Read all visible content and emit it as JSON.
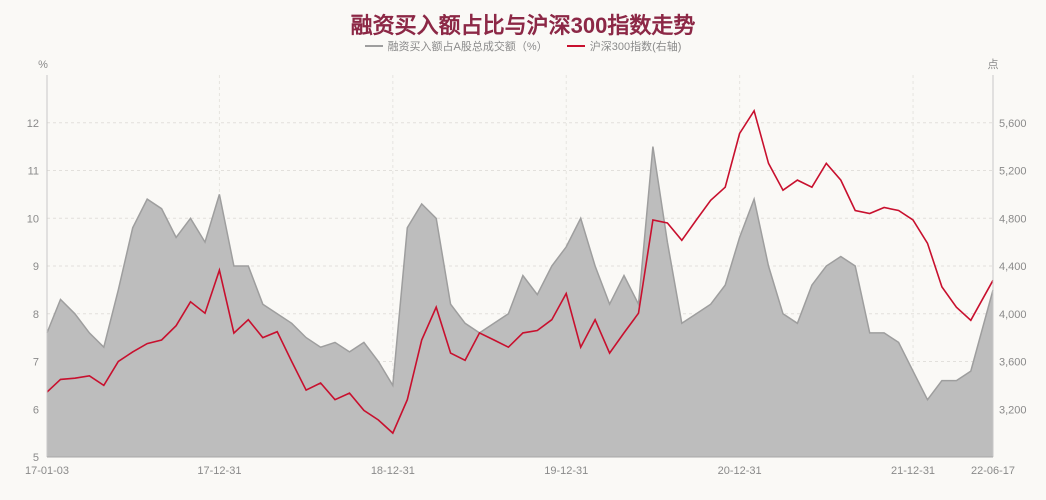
{
  "chart_data": {
    "type": "area+line",
    "title": "融资买入额占比与沪深300指数走势",
    "legend_position": "top",
    "grid": true,
    "left_axis": {
      "unit": "%",
      "range": [
        5,
        13
      ],
      "ticks": [
        "5",
        "6",
        "7",
        "8",
        "9",
        "10",
        "11",
        "12"
      ]
    },
    "right_axis": {
      "unit": "点",
      "range": [
        2800,
        6000
      ],
      "ticks": [
        "3,200",
        "3,600",
        "4,000",
        "4,400",
        "4,800",
        "5,200",
        "5,600"
      ]
    },
    "x_ticks": [
      "17-01-03",
      "17-12-31",
      "18-12-31",
      "19-12-31",
      "20-12-31",
      "21-12-31",
      "22-06-17"
    ],
    "x": [
      "2017-01",
      "2017-02",
      "2017-03",
      "2017-04",
      "2017-05",
      "2017-06",
      "2017-07",
      "2017-08",
      "2017-09",
      "2017-10",
      "2017-11",
      "2017-12",
      "2018-01",
      "2018-02",
      "2018-03",
      "2018-04",
      "2018-05",
      "2018-06",
      "2018-07",
      "2018-08",
      "2018-09",
      "2018-10",
      "2018-11",
      "2018-12",
      "2019-01",
      "2019-02",
      "2019-03",
      "2019-04",
      "2019-05",
      "2019-06",
      "2019-07",
      "2019-08",
      "2019-09",
      "2019-10",
      "2019-11",
      "2019-12",
      "2020-01",
      "2020-02",
      "2020-03",
      "2020-04",
      "2020-05",
      "2020-06",
      "2020-07",
      "2020-08",
      "2020-09",
      "2020-10",
      "2020-11",
      "2020-12",
      "2021-01",
      "2021-02",
      "2021-03",
      "2021-04",
      "2021-05",
      "2021-06",
      "2021-07",
      "2021-08",
      "2021-09",
      "2021-10",
      "2021-11",
      "2021-12",
      "2022-01",
      "2022-02",
      "2022-03",
      "2022-04",
      "2022-05",
      "2022-06-17"
    ],
    "series": [
      {
        "name": "融资买入额占A股总成交额（%）",
        "axis": "left",
        "type": "area",
        "color": "#9e9e9e",
        "values": [
          7.6,
          8.3,
          8.0,
          7.6,
          7.3,
          8.5,
          9.8,
          10.4,
          10.2,
          9.6,
          10.0,
          9.5,
          10.5,
          9.0,
          9.0,
          8.2,
          8.0,
          7.8,
          7.5,
          7.3,
          7.4,
          7.2,
          7.4,
          7.0,
          6.5,
          9.8,
          10.3,
          10.0,
          8.2,
          7.8,
          7.6,
          7.8,
          8.0,
          8.8,
          8.4,
          9.0,
          9.4,
          10.0,
          9.0,
          8.2,
          8.8,
          8.2,
          11.5,
          9.5,
          7.8,
          8.0,
          8.2,
          8.6,
          9.6,
          10.4,
          9.0,
          8.0,
          7.8,
          8.6,
          9.0,
          9.2,
          9.0,
          7.6,
          7.6,
          7.4,
          6.8,
          6.2,
          6.6,
          6.6,
          6.8,
          8.5
        ]
      },
      {
        "name": "沪深300指数(右轴)",
        "axis": "right",
        "type": "line",
        "color": "#c8102e",
        "values": [
          3344,
          3450,
          3460,
          3480,
          3400,
          3600,
          3680,
          3750,
          3780,
          3900,
          4100,
          4005,
          4365,
          3838,
          3950,
          3800,
          3850,
          3600,
          3360,
          3420,
          3280,
          3335,
          3190,
          3110,
          3000,
          3280,
          3780,
          4055,
          3670,
          3610,
          3840,
          3780,
          3720,
          3840,
          3860,
          3950,
          4170,
          3720,
          3950,
          3670,
          3840,
          4005,
          4785,
          4760,
          4615,
          4785,
          4950,
          5060,
          5510,
          5700,
          5260,
          5035,
          5120,
          5060,
          5260,
          5120,
          4865,
          4840,
          4890,
          4865,
          4785,
          4590,
          4225,
          4055,
          3945,
          4280
        ]
      }
    ]
  }
}
